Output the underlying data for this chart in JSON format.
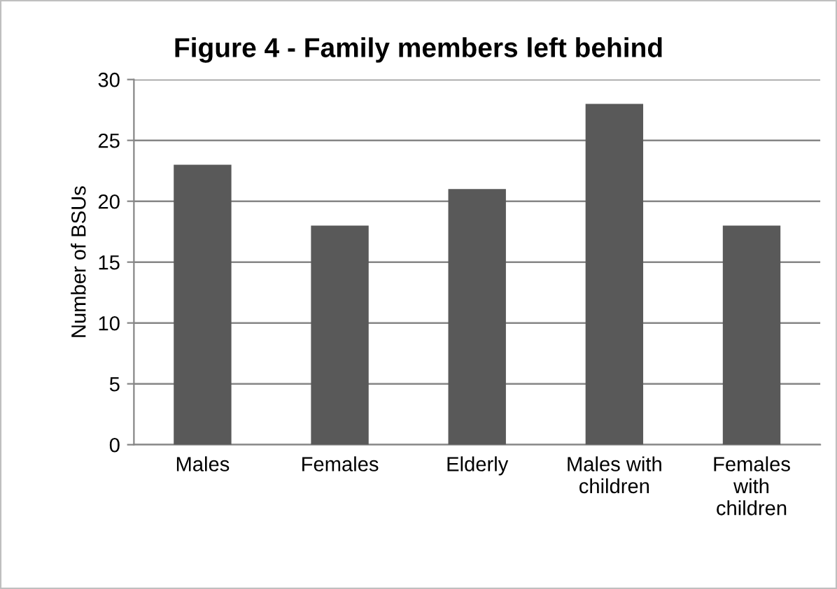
{
  "chart_data": {
    "type": "bar",
    "title": "Figure 4 - Family members left behind",
    "ylabel": "Number of BSUs",
    "categories": [
      "Males",
      "Females",
      "Elderly",
      "Males with children",
      "Females with children"
    ],
    "values": [
      23,
      18,
      21,
      28,
      18
    ],
    "color": "#595959",
    "ylim": [
      0,
      30
    ],
    "yticks": [
      0,
      5,
      10,
      15,
      20,
      25,
      30
    ],
    "grid": "y",
    "legend": false
  }
}
